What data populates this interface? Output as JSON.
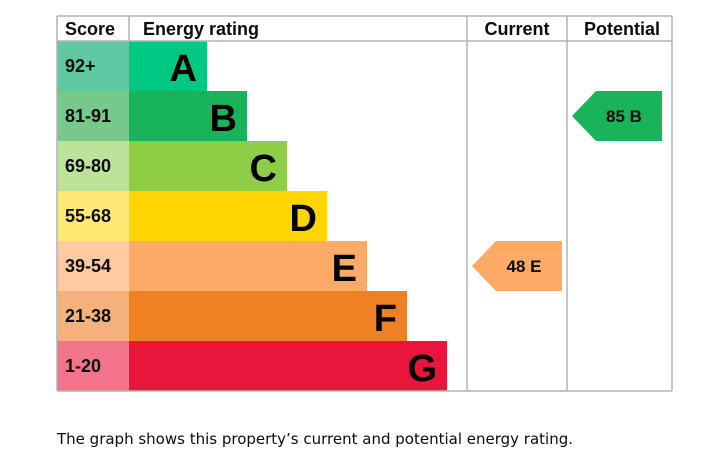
{
  "chart_data": {
    "type": "bar",
    "headers": {
      "score": "Score",
      "rating": "Energy rating",
      "current": "Current",
      "potential": "Potential"
    },
    "bands": [
      {
        "score": "92+",
        "letter": "A",
        "color": "#00c781",
        "tint": "#5fc7a1"
      },
      {
        "score": "81-91",
        "letter": "B",
        "color": "#19b459",
        "tint": "#76c88b"
      },
      {
        "score": "69-80",
        "letter": "C",
        "color": "#8dce46",
        "tint": "#bde29a"
      },
      {
        "score": "55-68",
        "letter": "D",
        "color": "#ffd500",
        "tint": "#ffe874"
      },
      {
        "score": "39-54",
        "letter": "E",
        "color": "#fcaa65",
        "tint": "#fdcaa2"
      },
      {
        "score": "21-38",
        "letter": "F",
        "color": "#ef8023",
        "tint": "#f4b17b"
      },
      {
        "score": "1-20",
        "letter": "G",
        "color": "#e9153b",
        "tint": "#f2738a"
      }
    ],
    "current": {
      "value": 48,
      "letter": "E",
      "label": "48  E"
    },
    "potential": {
      "value": 85,
      "letter": "B",
      "label": "85  B"
    }
  },
  "caption": "The graph shows this property’s current and potential energy rating."
}
